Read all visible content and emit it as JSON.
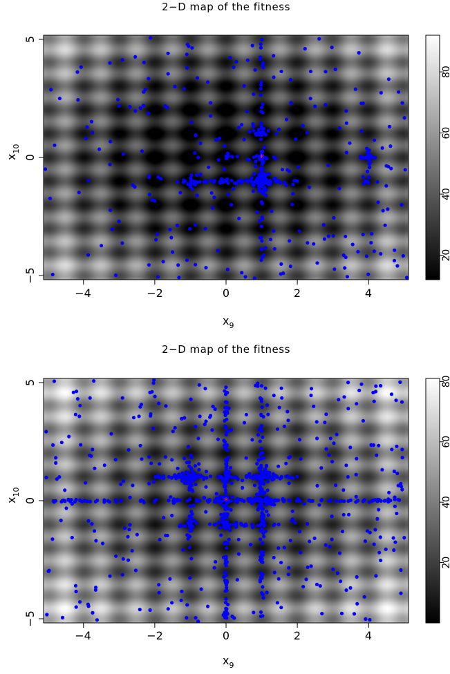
{
  "chart_data": [
    {
      "type": "heatmap",
      "title": "2−D map of the fitness",
      "xlabel": "x",
      "xlabel_sub": "9",
      "ylabel": "x",
      "ylabel_sub": "10",
      "xlim": [
        -5.12,
        5.12
      ],
      "ylim": [
        -5.12,
        5.12
      ],
      "x_ticks": [
        -4,
        -2,
        0,
        2,
        4
      ],
      "x_tick_labels": [
        "−4",
        "−2",
        "0",
        "2",
        "4"
      ],
      "y_ticks": [
        -5,
        0,
        5
      ],
      "y_tick_labels": [
        "−5",
        "0",
        "5"
      ],
      "colorbar": {
        "range": [
          12,
          92
        ],
        "ticks": [
          20,
          40,
          60,
          80
        ],
        "tick_labels": [
          "20",
          "40",
          "60",
          "80"
        ]
      },
      "surface": "rastrigin-like fitness, grayscale (low = black, high = white)",
      "colors": {
        "points": "#0000ff",
        "best": "#ff2020"
      },
      "best": {
        "x": 1.0,
        "y": 0.0
      },
      "population": {
        "random_points": 230,
        "clusters": [
          {
            "x": 1.0,
            "y": -1.0,
            "n": 90,
            "spread": 0.14
          },
          {
            "x": 1.0,
            "y": 1.0,
            "n": 20,
            "spread": 0.08
          },
          {
            "x": 1.0,
            "y": 0.0,
            "n": 15,
            "spread": 0.1
          },
          {
            "x": 0.0,
            "y": -1.0,
            "n": 14,
            "spread": 0.1
          },
          {
            "x": -1.0,
            "y": -1.0,
            "n": 14,
            "spread": 0.1
          },
          {
            "x": 4.0,
            "y": 0.0,
            "n": 10,
            "spread": 0.07
          },
          {
            "x": 4.0,
            "y": -1.0,
            "n": 6,
            "spread": 0.06
          },
          {
            "x": 0.0,
            "y": 0.0,
            "n": 6,
            "spread": 0.08
          }
        ],
        "lines": [
          {
            "orient": "v",
            "at": 1.0,
            "from": -5.0,
            "to": 5.0,
            "n": 45
          },
          {
            "orient": "h",
            "at": -1.0,
            "from": -1.4,
            "to": 2.0,
            "n": 35
          },
          {
            "orient": "h",
            "at": 0.0,
            "from": 3.7,
            "to": 4.3,
            "n": 8
          },
          {
            "orient": "v",
            "at": 4.0,
            "from": -1.2,
            "to": 0.4,
            "n": 8
          }
        ]
      }
    },
    {
      "type": "heatmap",
      "title": "2−D map of the fitness",
      "xlabel": "x",
      "xlabel_sub": "9",
      "ylabel": "x",
      "ylabel_sub": "10",
      "xlim": [
        -5.12,
        5.12
      ],
      "ylim": [
        -5.12,
        5.12
      ],
      "x_ticks": [
        -4,
        -2,
        0,
        2,
        4
      ],
      "x_tick_labels": [
        "−4",
        "−2",
        "0",
        "2",
        "4"
      ],
      "y_ticks": [
        -5,
        0,
        5
      ],
      "y_tick_labels": [
        "−5",
        "0",
        "5"
      ],
      "colorbar": {
        "range": [
          0,
          81
        ],
        "ticks": [
          20,
          40,
          60,
          80
        ],
        "tick_labels": [
          "20",
          "40",
          "60",
          "80"
        ]
      },
      "surface": "rastrigin-like fitness, grayscale (low = black, high = white)",
      "colors": {
        "points": "#0000ff",
        "best": "#ff2020"
      },
      "best": {
        "x": 0.0,
        "y": 0.0
      },
      "population": {
        "random_points": 340,
        "clusters": [
          {
            "x": -1.0,
            "y": 1.0,
            "n": 70,
            "spread": 0.15
          },
          {
            "x": 1.0,
            "y": 1.0,
            "n": 60,
            "spread": 0.15
          },
          {
            "x": 1.0,
            "y": 0.0,
            "n": 60,
            "spread": 0.15
          },
          {
            "x": 0.0,
            "y": 0.0,
            "n": 25,
            "spread": 0.1
          },
          {
            "x": 0.0,
            "y": 1.0,
            "n": 20,
            "spread": 0.1
          },
          {
            "x": 0.0,
            "y": -1.0,
            "n": 20,
            "spread": 0.1
          },
          {
            "x": -1.0,
            "y": -1.0,
            "n": 10,
            "spread": 0.1
          },
          {
            "x": 1.0,
            "y": -1.0,
            "n": 10,
            "spread": 0.1
          }
        ],
        "lines": [
          {
            "orient": "h",
            "at": 0.0,
            "from": -5.0,
            "to": 5.0,
            "n": 120
          },
          {
            "orient": "v",
            "at": 0.0,
            "from": -5.0,
            "to": 5.0,
            "n": 110
          },
          {
            "orient": "v",
            "at": 1.0,
            "from": -5.0,
            "to": 5.0,
            "n": 70
          },
          {
            "orient": "h",
            "at": 1.0,
            "from": -2.0,
            "to": 2.0,
            "n": 50
          },
          {
            "orient": "h",
            "at": -1.0,
            "from": -1.5,
            "to": 1.5,
            "n": 20
          },
          {
            "orient": "v",
            "at": -1.0,
            "from": -2.0,
            "to": 2.0,
            "n": 25
          }
        ]
      }
    }
  ]
}
